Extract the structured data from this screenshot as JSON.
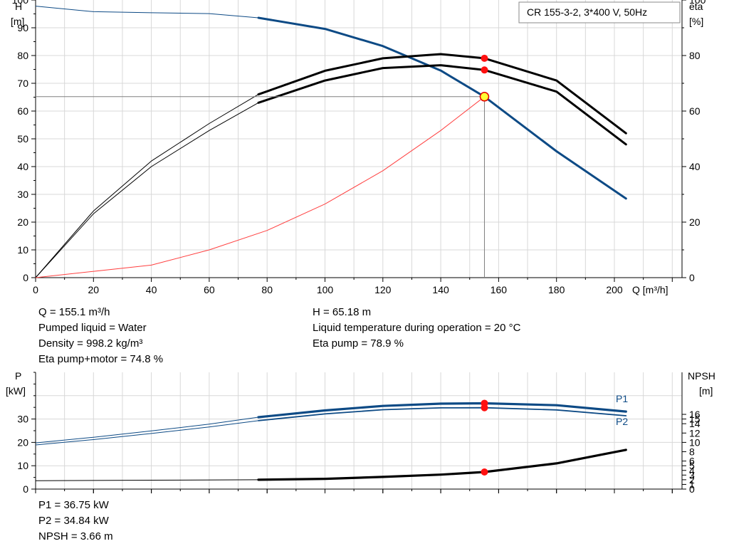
{
  "chart_data": [
    {
      "type": "line",
      "title": "CR 155-3-2, 3*400 V, 50Hz",
      "x_axis": {
        "label": "Q [m³/h]",
        "range": [
          0,
          220
        ],
        "ticks": [
          0,
          20,
          40,
          60,
          80,
          100,
          120,
          140,
          160,
          180,
          200
        ]
      },
      "y_left": {
        "label": "H",
        "unit": "[m]",
        "range": [
          0,
          100
        ],
        "ticks": [
          0,
          10,
          20,
          30,
          40,
          50,
          60,
          70,
          80,
          90,
          100
        ]
      },
      "y_right": {
        "label": "eta",
        "unit": "[%]",
        "range": [
          0,
          100
        ],
        "ticks": [
          0,
          20,
          40,
          60,
          80,
          100
        ]
      },
      "grid": true,
      "operating_point": {
        "Q": 155.1,
        "H": 65.18,
        "eta_pump": 78.9,
        "eta_pump_motor": 74.8
      },
      "series": [
        {
          "color": "#0d4a85",
          "axis": "left",
          "thin_until_x": 77,
          "points": [
            [
              0,
              97.8
            ],
            [
              20,
              95.8
            ],
            [
              40,
              95.4
            ],
            [
              60,
              95.1
            ],
            [
              77,
              93.6
            ],
            [
              100,
              89.6
            ],
            [
              120,
              83.4
            ],
            [
              140,
              74.6
            ],
            [
              155.1,
              65.18
            ],
            [
              180,
              45.5
            ],
            [
              204,
              28.5
            ]
          ]
        },
        {
          "color": "#000000",
          "axis": "right",
          "thin_until_x": 77,
          "points": [
            [
              0,
              0
            ],
            [
              20,
              24
            ],
            [
              40,
              42
            ],
            [
              60,
              55.5
            ],
            [
              77,
              66
            ],
            [
              100,
              74.5
            ],
            [
              120,
              79
            ],
            [
              140,
              80.5
            ],
            [
              155.1,
              79
            ],
            [
              180,
              71
            ],
            [
              204,
              52
            ]
          ]
        },
        {
          "color": "#000000",
          "axis": "right",
          "thin_until_x": 77,
          "points": [
            [
              0,
              0
            ],
            [
              20,
              23
            ],
            [
              40,
              40
            ],
            [
              60,
              53
            ],
            [
              77,
              63
            ],
            [
              100,
              71
            ],
            [
              120,
              75.5
            ],
            [
              140,
              76.5
            ],
            [
              155.1,
              74.8
            ],
            [
              180,
              67
            ],
            [
              204,
              48
            ]
          ]
        },
        {
          "color": "#ff4040",
          "axis": "left",
          "thin_until_x": 999,
          "points": [
            [
              0,
              0
            ],
            [
              40,
              4.5
            ],
            [
              60,
              10
            ],
            [
              80,
              17
            ],
            [
              100,
              26.5
            ],
            [
              120,
              38.5
            ],
            [
              140,
              53
            ],
            [
              155.1,
              65.18
            ]
          ]
        }
      ],
      "markers_right": [
        79,
        74.8
      ]
    },
    {
      "type": "line",
      "x_axis": {
        "range": [
          0,
          220
        ]
      },
      "y_left": {
        "label": "P",
        "unit": "[kW]",
        "range": [
          0,
          50
        ],
        "ticks": [
          0,
          10,
          20,
          30
        ]
      },
      "y_right": {
        "label": "NPSH",
        "unit": "[m]",
        "range": [
          0,
          25
        ],
        "ticks": [
          0,
          2,
          4,
          6,
          8,
          10,
          12,
          14,
          16
        ],
        "ticks_detail": [
          0,
          1,
          2,
          3,
          4,
          5,
          6,
          8,
          10,
          12,
          14,
          15,
          16
        ]
      },
      "grid": true,
      "series": [
        {
          "name": "P1",
          "color": "#0d4a85",
          "axis": "left",
          "thin_until_x": 77,
          "width": 3.2,
          "points": [
            [
              0,
              19.8
            ],
            [
              20,
              22.2
            ],
            [
              40,
              24.9
            ],
            [
              60,
              27.8
            ],
            [
              77,
              30.8
            ],
            [
              100,
              33.7
            ],
            [
              120,
              35.6
            ],
            [
              140,
              36.6
            ],
            [
              155.1,
              36.75
            ],
            [
              180,
              35.9
            ],
            [
              204,
              33.2
            ]
          ]
        },
        {
          "name": "P2",
          "color": "#0d4a85",
          "axis": "left",
          "thin_until_x": 77,
          "width": 1.8,
          "points": [
            [
              0,
              18.9
            ],
            [
              20,
              21.2
            ],
            [
              40,
              23.8
            ],
            [
              60,
              26.6
            ],
            [
              77,
              29.3
            ],
            [
              100,
              32.2
            ],
            [
              120,
              34
            ],
            [
              140,
              34.8
            ],
            [
              155.1,
              34.84
            ],
            [
              180,
              33.9
            ],
            [
              204,
              31.4
            ]
          ]
        },
        {
          "name": "NPSH",
          "color": "#000000",
          "axis": "right",
          "thin_until_x": 77,
          "width": 3.2,
          "points": [
            [
              0,
              1.8
            ],
            [
              40,
              1.9
            ],
            [
              77,
              2
            ],
            [
              100,
              2.2
            ],
            [
              120,
              2.6
            ],
            [
              140,
              3.1
            ],
            [
              155.1,
              3.66
            ],
            [
              180,
              5.5
            ],
            [
              204,
              8.4
            ]
          ]
        }
      ],
      "markers_left": [
        36.75,
        34.84
      ],
      "markers_right": [
        3.66
      ]
    }
  ],
  "info_top": {
    "left": [
      "Q = 155.1 m³/h",
      "Pumped liquid = Water",
      "Density = 998.2 kg/m³",
      "Eta pump+motor = 74.8 %"
    ],
    "right": [
      "H = 65.18 m",
      "Liquid temperature during operation = 20 °C",
      "Eta pump = 78.9 %"
    ]
  },
  "info_bottom": [
    "P1 = 36.75 kW",
    "P2 = 34.84 kW",
    "NPSH = 3.66 m"
  ]
}
